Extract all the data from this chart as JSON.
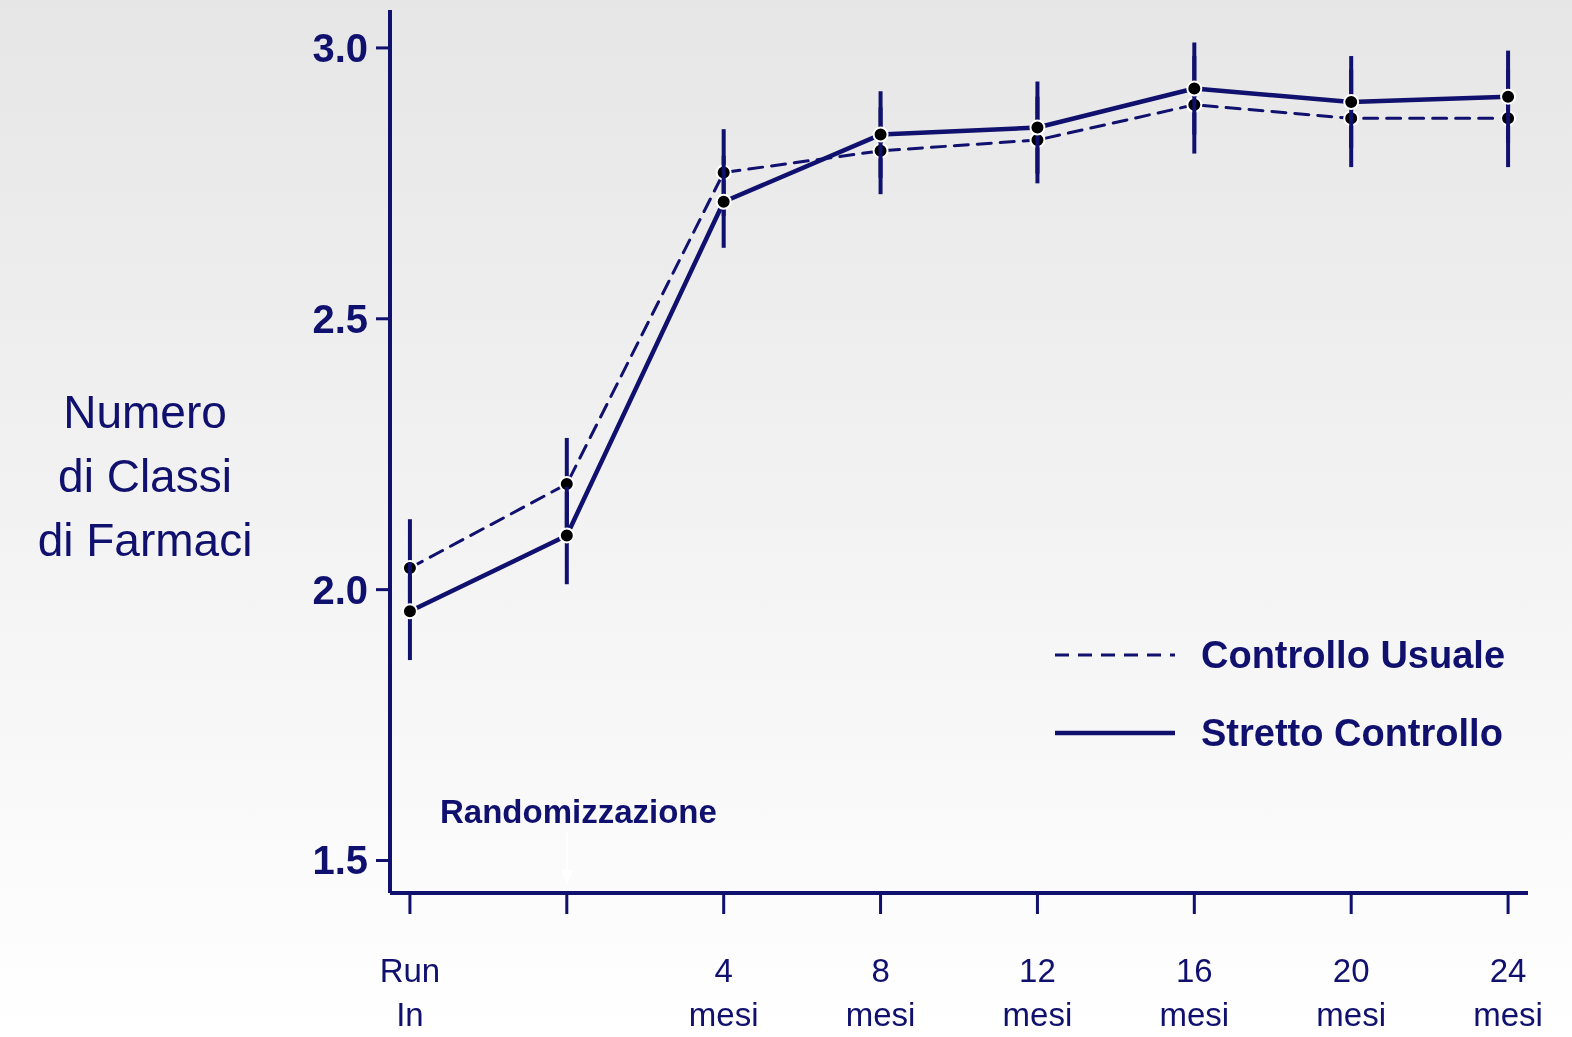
{
  "chart_data": {
    "type": "line",
    "ylabel": "Numero di Classi di Farmaci",
    "categories": [
      "Run In",
      null,
      "4 mesi",
      "8 mesi",
      "12 mesi",
      "16 mesi",
      "20 mesi",
      "24 mesi"
    ],
    "series": [
      {
        "name": "Controllo Usuale",
        "color": "#10106e",
        "line_style": "dashed",
        "values": [
          2.04,
          2.195,
          2.77,
          2.81,
          2.83,
          2.895,
          2.87,
          2.87
        ],
        "errors": [
          0.09,
          0.085,
          0.08,
          0.08,
          0.08,
          0.09,
          0.09,
          0.09
        ]
      },
      {
        "name": "Stretto Controllo",
        "color": "#10106e",
        "line_style": "solid",
        "values": [
          1.96,
          2.1,
          2.716,
          2.84,
          2.853,
          2.925,
          2.9,
          2.91
        ],
        "errors": [
          0.09,
          0.09,
          0.085,
          0.08,
          0.085,
          0.085,
          0.085,
          0.085
        ]
      }
    ],
    "ylim": [
      1.44,
      3.07
    ],
    "yticks": [
      1.5,
      {
        "value": 2,
        "label": "2.0"
      },
      2.5,
      {
        "value": 3,
        "label": "3.0"
      }
    ],
    "marker": "circle",
    "legend": "right",
    "grid": false,
    "annotations": [
      "Randomizzazione"
    ]
  }
}
